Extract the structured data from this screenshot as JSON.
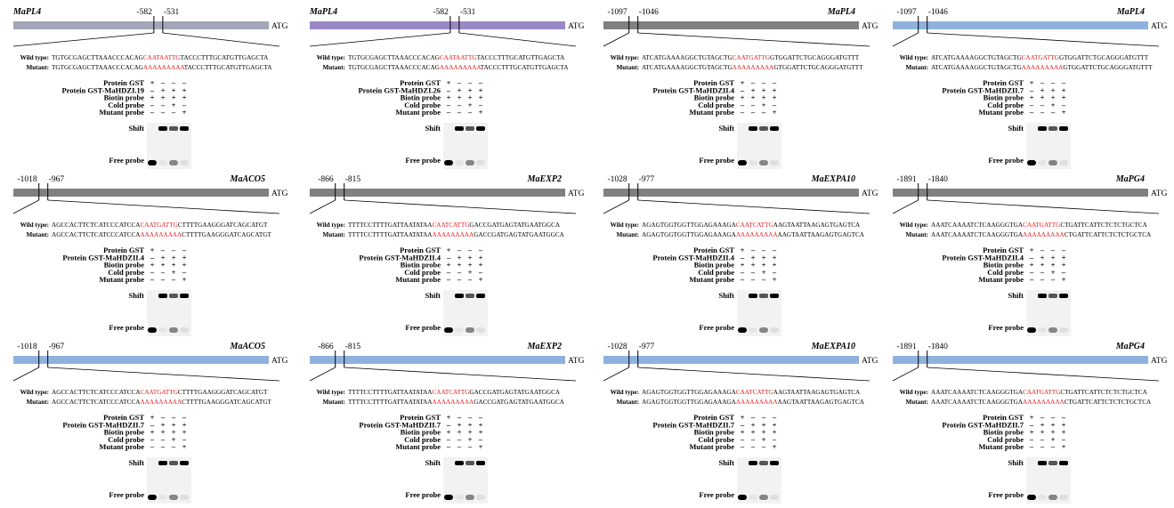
{
  "legend": {
    "wild_type": "Wild type:",
    "mutant": "Mutant:",
    "start": "ATG",
    "shift": "Shift",
    "free": "Free probe",
    "rows": [
      {
        "label": "Protein GST",
        "signs": [
          "+",
          "–",
          "–",
          "–"
        ]
      },
      {
        "label": "Biotin probe",
        "signs": [
          "+",
          "+",
          "+",
          "+"
        ]
      },
      {
        "label": "Cold probe",
        "signs": [
          "–",
          "–",
          "+",
          "–"
        ]
      },
      {
        "label": "Mutant probe",
        "signs": [
          "–",
          "–",
          "–",
          "+"
        ]
      }
    ],
    "protein_signs": [
      "–",
      "+",
      "+",
      "+"
    ]
  },
  "panels": [
    {
      "gene": "MaPL4",
      "left": -582,
      "right": -531,
      "protein": "Protein GST-MaHDZI.19",
      "bar_color": "#a3a6b8",
      "wt": [
        "TGTGCGAGCTTAAACCCACAG",
        "CAATAATTG",
        "TACCCTTTGCATGTTGAGCTA"
      ],
      "mut": [
        "TGTGCGAGCTTAAACCCACAG",
        "AAAAAAAAA",
        "TACCCTTTGCATGTTGAGCTA"
      ]
    },
    {
      "gene": "MaPL4",
      "left": -582,
      "right": -531,
      "protein": "Protein GST-MaHDZI.26",
      "bar_color": "#9b87c4",
      "wt": [
        "TGTGCGAGCTTAAACCCACAG",
        "CAATAATTG",
        "TACCCTTTGCATGTTGAGCTA"
      ],
      "mut": [
        "TGTGCGAGCTTAAACCCACAG",
        "AAAAAAAAA",
        "TACCCTTTGCATGTTGAGCTA"
      ]
    },
    {
      "gene": "MaPL4",
      "left": -1097,
      "right": -1046,
      "protein": "Protein GST-MaHDZII.4",
      "bar_color": "#808080",
      "wt": [
        "ATCATGAAAAGGCTGTAGCTG",
        "CAATGATTG",
        "GTGGATTCTGCAGGGATGTTT"
      ],
      "mut": [
        "ATCATGAAAAGGCTGTAGCTG",
        "AAAAAAAAA",
        "GTGGATTCTGCAGGGATGTTT"
      ]
    },
    {
      "gene": "MaPL4",
      "left": -1097,
      "right": -1046,
      "protein": "Protein GST-MaHDZII.7",
      "bar_color": "#8fb1dd",
      "wt": [
        "ATCATGAAAAGGCTGTAGCTG",
        "CAATGATTG",
        "GTGGATTCTGCAGGGATGTTT"
      ],
      "mut": [
        "ATCATGAAAAGGCTGTAGCTG",
        "AAAAAAAAA",
        "GTGGATTCTGCAGGGATGTTT"
      ]
    },
    {
      "gene": "MaACO5",
      "left": -1018,
      "right": -967,
      "protein": "Protein GST-MaHDZII.4",
      "bar_color": "#808080",
      "wt": [
        "AGCCACTTCTCATCCCATCCA",
        "CAATGATTG",
        "CTTTTGAAGGGATCAGCATGT"
      ],
      "mut": [
        "AGCCACTTCTCATCCCATCCA",
        "AAAAAAAAA",
        "CTTTTGAAGGGATCAGCATGT"
      ]
    },
    {
      "gene": "MaEXP2",
      "left": -866,
      "right": -815,
      "protein": "Protein GST-MaHDZII.4",
      "bar_color": "#808080",
      "wt": [
        "TTTTCCTTTTGATTAATATAA",
        "CAATCATTG",
        "GACCGATGAGTATGAATGGCA"
      ],
      "mut": [
        "TTTTCCTTTTGATTAATATAA",
        "AAAAAAAAA",
        "GACCGATGAGTATGAATGGCA"
      ]
    },
    {
      "gene": "MaEXPA10",
      "left": -1028,
      "right": -977,
      "protein": "Protein GST-MaHDZII.4",
      "bar_color": "#808080",
      "wt": [
        "AGAGTGGTGGTTGGAGAAAGA",
        "CAATCATTG",
        "AAGTAATTAAGAGTGAGTCA"
      ],
      "mut": [
        "AGAGTGGTGGTTGGAGAAAGA",
        "AAAAAAAAA",
        "AAGTAATTAAGAGTGAGTCA"
      ]
    },
    {
      "gene": "MaPG4",
      "left": -1891,
      "right": -1840,
      "protein": "Protein GST-MaHDZII.4",
      "bar_color": "#808080",
      "wt": [
        "AAATCAAAATCTCAAGGGTGA",
        "CAATGATTG",
        "CTGATTCATTCTCTCTGCTCA"
      ],
      "mut": [
        "AAATCAAAATCTCAAGGGTGA",
        "AAAAAAAAA",
        "CTGATTCATTCTCTCTGCTCA"
      ]
    },
    {
      "gene": "MaACO5",
      "left": -1018,
      "right": -967,
      "protein": "Protein GST-MaHDZII.7",
      "bar_color": "#8fb1dd",
      "wt": [
        "AGCCACTTCTCATCCCATCCA",
        "CAATGATTG",
        "CTTTTGAAGGGATCAGCATGT"
      ],
      "mut": [
        "AGCCACTTCTCATCCCATCCA",
        "AAAAAAAAA",
        "CTTTTGAAGGGATCAGCATGT"
      ]
    },
    {
      "gene": "MaEXP2",
      "left": -866,
      "right": -815,
      "protein": "Protein GST-MaHDZII.7",
      "bar_color": "#8fb1dd",
      "wt": [
        "TTTTCCTTTTGATTAATATAA",
        "CAATCATTG",
        "GACCGATGAGTATGAATGGCA"
      ],
      "mut": [
        "TTTTCCTTTTGATTAATATAA",
        "AAAAAAAAA",
        "GACCGATGAGTATGAATGGCA"
      ]
    },
    {
      "gene": "MaEXPA10",
      "left": -1028,
      "right": -977,
      "protein": "Protein GST-MaHDZII.7",
      "bar_color": "#8fb1dd",
      "wt": [
        "AGAGTGGTGGTTGGAGAAAGA",
        "CAATCATTG",
        "AAGTAATTAAGAGTGAGTCA"
      ],
      "mut": [
        "AGAGTGGTGGTTGGAGAAAGA",
        "AAAAAAAAA",
        "AAGTAATTAAGAGTGAGTCA"
      ]
    },
    {
      "gene": "MaPG4",
      "left": -1891,
      "right": -1840,
      "protein": "Protein GST-MaHDZII.7",
      "bar_color": "#8fb1dd",
      "wt": [
        "AAATCAAAATCTCAAGGGTGA",
        "CAATGATTG",
        "CTGATTCATTCTCTCTGCTCA"
      ],
      "mut": [
        "AAATCAAAATCTCAAGGGTGA",
        "AAAAAAAAA",
        "CTGATTCATTCTCTCTGCTCA"
      ]
    }
  ]
}
